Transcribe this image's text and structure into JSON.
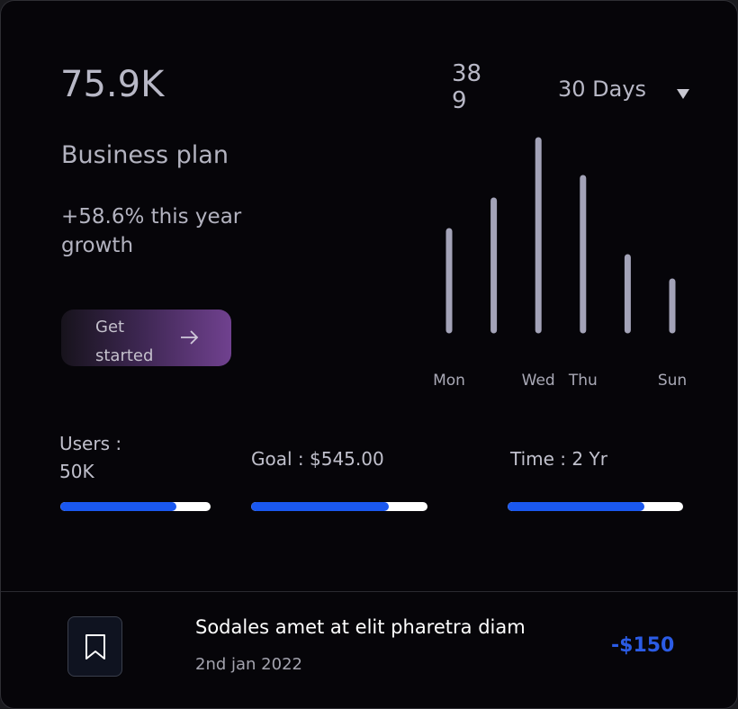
{
  "summary": {
    "value": "75.9K",
    "title": "Business plan",
    "growth": "+58.6% this year growth",
    "button": "Get started"
  },
  "counter": "389",
  "period": "30 Days",
  "chart_data": {
    "type": "bar",
    "categories": [
      "Mon",
      null,
      "Wed",
      "Thu",
      null,
      "Sun"
    ],
    "values": [
      110,
      144,
      211,
      169,
      81,
      54
    ],
    "color": "#a3a3b8"
  },
  "stats": [
    {
      "label": "Users : 50K",
      "progress": 77
    },
    {
      "label": "Goal : $545.00",
      "progress": 78
    },
    {
      "label": "Time : 2 Yr",
      "progress": 78
    }
  ],
  "transaction": {
    "title": "Sodales amet at elit pharetra diam",
    "date": "2nd jan 2022",
    "amount": "-$150"
  }
}
